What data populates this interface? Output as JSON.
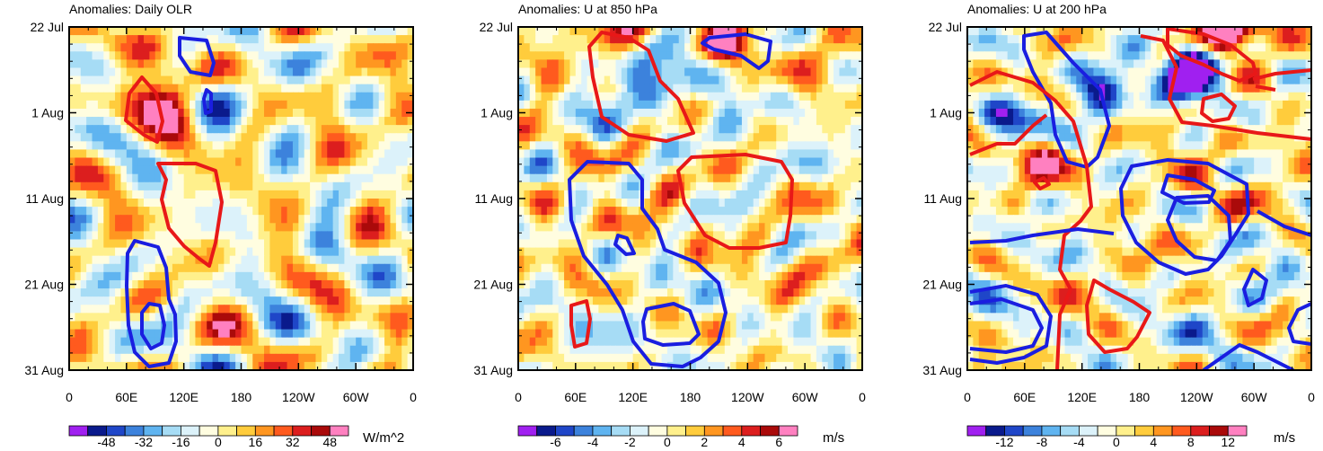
{
  "colorbar_colors": [
    "#a020f0",
    "#0a1a8c",
    "#1f46c8",
    "#3c82dc",
    "#5fb4f0",
    "#a6dcf5",
    "#dcf2fa",
    "#fffde0",
    "#fff08c",
    "#ffcc3c",
    "#ff9620",
    "#ff5a1e",
    "#dc1e1e",
    "#aa0a0a",
    "#ff80c0"
  ],
  "chart_data": [
    {
      "type": "heatmap",
      "title": "Anomalies: Daily OLR",
      "units": "W/m^2",
      "x_ticks": [
        "0",
        "60E",
        "120E",
        "180",
        "120W",
        "60W",
        "0"
      ],
      "y_ticks": [
        "22 Jul",
        "1 Aug",
        "11 Aug",
        "21 Aug",
        "31 Aug"
      ],
      "colorbar_labels": [
        "-48",
        "-32",
        "-16",
        "0",
        "16",
        "32",
        "48"
      ],
      "colorbar_levels": [
        -56,
        -48,
        -40,
        -32,
        -24,
        -16,
        -8,
        0,
        8,
        16,
        24,
        32,
        40,
        48,
        56
      ],
      "hotspots": [
        [
          50,
          92,
          14
        ],
        [
          100,
          101,
          30
        ],
        [
          140,
          62,
          18
        ],
        [
          110,
          76,
          22
        ],
        [
          150,
          82,
          -16
        ],
        [
          150,
          85,
          -12
        ],
        [
          300,
          103,
          10
        ],
        [
          90,
          33,
          10
        ],
        [
          40,
          120,
          -14
        ],
        [
          240,
          52,
          -14
        ]
      ],
      "seed": 17
    },
    {
      "type": "heatmap",
      "title": "Anomalies: U at 850 hPa",
      "units": "m/s",
      "x_ticks": [
        "0",
        "60E",
        "120E",
        "180",
        "120W",
        "60W",
        "0"
      ],
      "y_ticks": [
        "22 Jul",
        "1 Aug",
        "11 Aug",
        "21 Aug",
        "31 Aug"
      ],
      "colorbar_labels": [
        "-6",
        "-4",
        "-2",
        "0",
        "2",
        "4",
        "6"
      ],
      "colorbar_levels": [
        -7,
        -6,
        -5,
        -4,
        -3,
        -2,
        -1,
        0,
        1,
        2,
        3,
        4,
        5,
        6,
        7
      ],
      "hotspots": [
        [
          120,
          5,
          5
        ],
        [
          220,
          15,
          5
        ],
        [
          90,
          49,
          -3
        ],
        [
          140,
          68,
          -4
        ],
        [
          150,
          20,
          -3
        ],
        [
          215,
          90,
          -2
        ],
        [
          30,
          50,
          3
        ],
        [
          320,
          55,
          2
        ],
        [
          100,
          10,
          3
        ]
      ],
      "seed": 5
    },
    {
      "type": "heatmap",
      "title": "Anomalies: U at 200 hPa",
      "units": "m/s",
      "x_ticks": [
        "0",
        "60E",
        "120E",
        "180",
        "120W",
        "60W",
        "0"
      ],
      "y_ticks": [
        "22 Jul",
        "1 Aug",
        "11 Aug",
        "21 Aug",
        "31 Aug"
      ],
      "colorbar_labels": [
        "-12",
        "-8",
        "-4",
        "0",
        "4",
        "8",
        "12"
      ],
      "colorbar_levels": [
        -14,
        -12,
        -10,
        -8,
        -6,
        -4,
        -2,
        0,
        2,
        4,
        6,
        8,
        10,
        12,
        14
      ],
      "hotspots": [
        [
          270,
          8,
          12
        ],
        [
          255,
          5,
          14
        ],
        [
          295,
          3,
          10
        ],
        [
          135,
          78,
          -12
        ],
        [
          240,
          40,
          -13
        ],
        [
          235,
          48,
          -12
        ],
        [
          300,
          148,
          -8
        ],
        [
          40,
          106,
          -10
        ],
        [
          35,
          103,
          -9
        ],
        [
          70,
          154,
          8
        ],
        [
          300,
          144,
          6
        ],
        [
          20,
          80,
          6
        ]
      ],
      "seed": 29
    }
  ]
}
